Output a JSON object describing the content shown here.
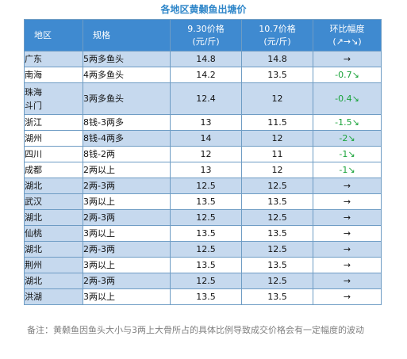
{
  "title": "各地区黄颡鱼出塘价",
  "header": {
    "region": "地区",
    "spec": "规格",
    "price1_line1": "9.30价格",
    "price1_line2": "(元/斤)",
    "price2_line1": "10.7价格",
    "price2_line2": "(元/斤)",
    "change_line1": "环比幅度",
    "change_line2": "(↗→↘)"
  },
  "rows": [
    {
      "region": "广东",
      "spec": "5两多鱼头",
      "p1": "14.8",
      "p2": "14.8",
      "chg": "→"
    },
    {
      "region": "南海",
      "spec": "4两多鱼头",
      "p1": "14.2",
      "p2": "13.5",
      "chg": "-0.7↘"
    },
    {
      "region": "珠海斗门",
      "spec": "3两多鱼头",
      "p1": "12.4",
      "p2": "12",
      "chg": "-0.4↘"
    },
    {
      "region": "浙江",
      "spec": "8钱-3两多",
      "p1": "13",
      "p2": "11.5",
      "chg": "-1.5↘"
    },
    {
      "region": "湖州",
      "spec": "8钱-4两多",
      "p1": "14",
      "p2": "12",
      "chg": "-2↘"
    },
    {
      "region": "四川",
      "spec": "8钱-2两",
      "p1": "12",
      "p2": "11",
      "chg": "-1↘"
    },
    {
      "region": "成都",
      "spec": "2两以上",
      "p1": "13",
      "p2": "12",
      "chg": "-1↘"
    },
    {
      "region": "湖北",
      "spec": "2两-3两",
      "p1": "12.5",
      "p2": "12.5",
      "chg": "→"
    },
    {
      "region": "武汉",
      "spec": "3两以上",
      "p1": "13.5",
      "p2": "13.5",
      "chg": "→"
    },
    {
      "region": "湖北",
      "spec": "2两-3两",
      "p1": "12.5",
      "p2": "12.5",
      "chg": "→"
    },
    {
      "region": "仙桃",
      "spec": "3两以上",
      "p1": "13.5",
      "p2": "13.5",
      "chg": "→"
    },
    {
      "region": "湖北",
      "spec": "2两-3两",
      "p1": "12.5",
      "p2": "12.5",
      "chg": "→"
    },
    {
      "region": "荆州",
      "spec": "3两以上",
      "p1": "13.5",
      "p2": "13.5",
      "chg": "→"
    },
    {
      "region": "湖北",
      "spec": "2两-3两",
      "p1": "12.5",
      "p2": "12.5",
      "chg": "→"
    },
    {
      "region": "洪湖",
      "spec": "3两以上",
      "p1": "13.5",
      "p2": "13.5",
      "chg": "→"
    }
  ],
  "note": "备注：黄颡鱼因鱼头大小与3两上大骨所占的具体比例导致成交价格会有一定幅度的波动",
  "colors": {
    "header_bg": "#3f8ad0",
    "shade_bg": "#c6d9ee",
    "title": "#2e86c9",
    "decrease": "#1aa33a"
  }
}
